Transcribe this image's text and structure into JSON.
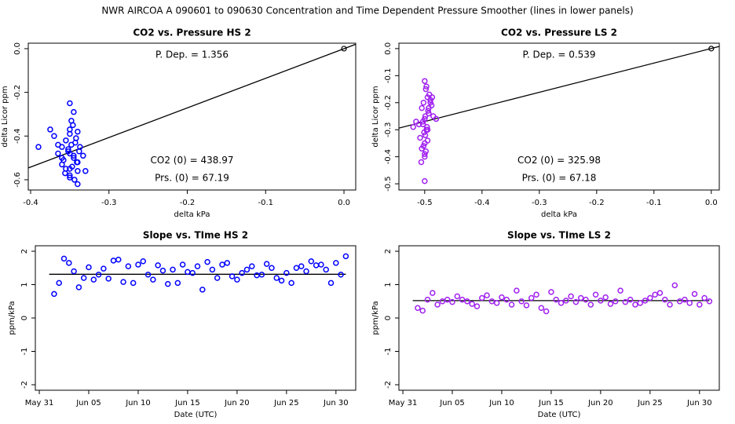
{
  "title": "NWR   AIRCOA A   090601 to 090630   Concentration and Time Dependent Pressure Smoother (lines in lower panels)",
  "chart_data": [
    {
      "type": "scatter",
      "title": "CO2 vs. Pressure HS 2",
      "x_label": "delta kPa",
      "y_label": "delta Licor ppm",
      "color": "#0000ff",
      "annotations": [
        "P. Dep. = 1.356",
        "CO2 (0) = 438.97",
        "Prs. (0) = 67.19"
      ],
      "xlim": [
        -0.403,
        0.015
      ],
      "xticks": [
        -0.4,
        -0.3,
        -0.2,
        -0.1,
        {
          "value": 0,
          "label": "0.0"
        }
      ],
      "ylim": [
        -0.647,
        0.025
      ],
      "yticks": [
        {
          "value": 0,
          "label": "0.0"
        },
        -0.2,
        -0.4,
        -0.6
      ],
      "x": [
        -0.35,
        -0.345,
        -0.34,
        -0.355,
        -0.36,
        -0.35,
        -0.345,
        -0.34,
        -0.35,
        -0.338,
        -0.37,
        -0.365,
        -0.35,
        -0.348,
        -0.342,
        -0.352,
        -0.36,
        -0.356,
        -0.344,
        -0.34,
        -0.35,
        -0.337,
        -0.333,
        -0.358,
        -0.347,
        -0.343,
        -0.35,
        -0.39,
        -0.375,
        -0.365,
        -0.355,
        -0.345,
        -0.34,
        -0.36,
        -0.35,
        -0.33,
        -0.346,
        -0.352,
        -0.341,
        -0.348
      ],
      "y": [
        -0.25,
        -0.29,
        -0.38,
        -0.42,
        -0.45,
        -0.48,
        -0.5,
        -0.52,
        -0.55,
        -0.47,
        -0.4,
        -0.44,
        -0.37,
        -0.33,
        -0.41,
        -0.46,
        -0.53,
        -0.57,
        -0.6,
        -0.62,
        -0.58,
        -0.45,
        -0.49,
        -0.51,
        -0.54,
        -0.43,
        -0.39,
        -0.45,
        -0.37,
        -0.48,
        -0.55,
        -0.49,
        -0.56,
        -0.5,
        -0.59,
        -0.56,
        -0.35,
        -0.47,
        -0.52,
        -0.44
      ],
      "fit": {
        "x": [
          -0.403,
          0.015
        ],
        "y": [
          -0.546,
          0.02
        ],
        "color": "#000000"
      },
      "reference_point": {
        "x": 0,
        "y": 0,
        "color": "#000000"
      }
    },
    {
      "type": "scatter",
      "title": "CO2 vs. Pressure LS 2",
      "x_label": "delta kPa",
      "y_label": "delta Licor ppm",
      "color": "#a020f0",
      "annotations": [
        "P. Dep. = 0.539",
        "CO2 (0) = 325.98",
        "Prs. (0) = 67.18"
      ],
      "xlim": [
        -0.545,
        0.014
      ],
      "xticks": [
        -0.5,
        -0.4,
        -0.3,
        -0.2,
        -0.1,
        {
          "value": 0,
          "label": "0.0"
        }
      ],
      "ylim": [
        -0.523,
        0.02
      ],
      "yticks": [
        {
          "value": 0,
          "label": "0.0"
        },
        -0.1,
        -0.2,
        -0.3,
        -0.4,
        -0.5
      ],
      "x": [
        -0.5,
        -0.498,
        -0.495,
        -0.502,
        -0.505,
        -0.49,
        -0.493,
        -0.5,
        -0.488,
        -0.51,
        -0.497,
        -0.503,
        -0.499,
        -0.485,
        -0.492,
        -0.508,
        -0.5,
        -0.496,
        -0.494,
        -0.501,
        -0.515,
        -0.52,
        -0.505,
        -0.498,
        -0.487,
        -0.495,
        -0.49,
        -0.502,
        -0.5,
        -0.48,
        -0.493,
        -0.497,
        -0.5,
        -0.506,
        -0.499,
        -0.495,
        -0.5,
        -0.503
      ],
      "y": [
        -0.12,
        -0.15,
        -0.18,
        -0.2,
        -0.22,
        -0.19,
        -0.24,
        -0.26,
        -0.21,
        -0.28,
        -0.3,
        -0.27,
        -0.32,
        -0.25,
        -0.17,
        -0.33,
        -0.35,
        -0.29,
        -0.23,
        -0.31,
        -0.27,
        -0.29,
        -0.37,
        -0.38,
        -0.18,
        -0.34,
        -0.2,
        -0.36,
        -0.4,
        -0.26,
        -0.22,
        -0.14,
        -0.49,
        -0.42,
        -0.25,
        -0.3,
        -0.39,
        -0.28
      ],
      "fit": {
        "x": [
          -0.545,
          0.014
        ],
        "y": [
          -0.294,
          0.008
        ],
        "color": "#000000"
      },
      "reference_point": {
        "x": 0,
        "y": 0,
        "color": "#000000"
      }
    },
    {
      "type": "scatter",
      "title": "Slope vs. TIme HS 2",
      "x_label": "Date (UTC)",
      "y_label": "ppm/kPa",
      "color": "#0000ff",
      "xlim": [
        -0.4,
        32
      ],
      "xticks": [
        {
          "value": 0,
          "label": "May 31"
        },
        {
          "value": 5,
          "label": "Jun 05"
        },
        {
          "value": 10,
          "label": "Jun 10"
        },
        {
          "value": 15,
          "label": "Jun 15"
        },
        {
          "value": 20,
          "label": "Jun 20"
        },
        {
          "value": 25,
          "label": "Jun 25"
        },
        {
          "value": 30,
          "label": "Jun 30"
        }
      ],
      "ylim": [
        -2.165,
        2.165
      ],
      "yticks": [
        -2,
        -1,
        0,
        1,
        2
      ],
      "x": [
        1.5,
        2,
        2.5,
        3,
        3.5,
        4,
        4.5,
        5,
        5.5,
        6,
        6.5,
        7,
        7.5,
        8,
        8.5,
        9,
        9.5,
        10,
        10.5,
        11,
        11.5,
        12,
        12.5,
        13,
        13.5,
        14,
        14.5,
        15,
        15.5,
        16,
        16.5,
        17,
        17.5,
        18,
        18.5,
        19,
        19.5,
        20,
        20.5,
        21,
        21.5,
        22,
        22.5,
        23,
        23.5,
        24,
        24.5,
        25,
        25.5,
        26,
        26.5,
        27,
        27.5,
        28,
        28.5,
        29,
        29.5,
        30,
        30.5,
        31
      ],
      "y": [
        0.72,
        1.05,
        1.78,
        1.65,
        1.4,
        0.92,
        1.2,
        1.52,
        1.15,
        1.3,
        1.48,
        1.18,
        1.72,
        1.75,
        1.08,
        1.55,
        1.05,
        1.6,
        1.7,
        1.3,
        1.15,
        1.58,
        1.42,
        1.02,
        1.45,
        1.05,
        1.6,
        1.38,
        1.35,
        1.55,
        0.85,
        1.68,
        1.45,
        1.2,
        1.6,
        1.65,
        1.25,
        1.15,
        1.35,
        1.45,
        1.55,
        1.28,
        1.3,
        1.62,
        1.5,
        1.2,
        1.12,
        1.35,
        1.05,
        1.5,
        1.55,
        1.4,
        1.7,
        1.58,
        1.6,
        1.45,
        1.05,
        1.65,
        1.3,
        1.85
      ],
      "fit": {
        "x": [
          1,
          31
        ],
        "y": [
          1.31,
          1.31
        ],
        "color": "#000000"
      }
    },
    {
      "type": "scatter",
      "title": "Slope vs. TIme LS 2",
      "x_label": "Date (UTC)",
      "y_label": "ppm/kPa",
      "color": "#a020f0",
      "xlim": [
        -0.4,
        32
      ],
      "xticks": [
        {
          "value": 0,
          "label": "May 31"
        },
        {
          "value": 5,
          "label": "Jun 05"
        },
        {
          "value": 10,
          "label": "Jun 10"
        },
        {
          "value": 15,
          "label": "Jun 15"
        },
        {
          "value": 20,
          "label": "Jun 20"
        },
        {
          "value": 25,
          "label": "Jun 25"
        },
        {
          "value": 30,
          "label": "Jun 30"
        }
      ],
      "ylim": [
        -2.165,
        2.165
      ],
      "yticks": [
        -2,
        -1,
        0,
        1,
        2
      ],
      "x": [
        1.5,
        2,
        2.5,
        3,
        3.5,
        4,
        4.5,
        5,
        5.5,
        6,
        6.5,
        7,
        7.5,
        8,
        8.5,
        9,
        9.5,
        10,
        10.5,
        11,
        11.5,
        12,
        12.5,
        13,
        13.5,
        14,
        14.5,
        15,
        15.5,
        16,
        16.5,
        17,
        17.5,
        18,
        18.5,
        19,
        19.5,
        20,
        20.5,
        21,
        21.5,
        22,
        22.5,
        23,
        23.5,
        24,
        24.5,
        25,
        25.5,
        26,
        26.5,
        27,
        27.5,
        28,
        28.5,
        29,
        29.5,
        30,
        30.5,
        31
      ],
      "y": [
        0.3,
        0.22,
        0.55,
        0.75,
        0.4,
        0.5,
        0.55,
        0.48,
        0.65,
        0.55,
        0.5,
        0.42,
        0.35,
        0.6,
        0.68,
        0.5,
        0.45,
        0.62,
        0.55,
        0.4,
        0.82,
        0.5,
        0.38,
        0.6,
        0.7,
        0.3,
        0.2,
        0.78,
        0.55,
        0.45,
        0.52,
        0.65,
        0.48,
        0.6,
        0.55,
        0.4,
        0.7,
        0.52,
        0.62,
        0.42,
        0.5,
        0.82,
        0.48,
        0.55,
        0.4,
        0.45,
        0.52,
        0.6,
        0.7,
        0.75,
        0.55,
        0.4,
        0.98,
        0.5,
        0.55,
        0.45,
        0.72,
        0.4,
        0.6,
        0.5
      ],
      "fit": {
        "x": [
          1,
          31
        ],
        "y": [
          0.52,
          0.52
        ],
        "color": "#000000"
      }
    }
  ]
}
